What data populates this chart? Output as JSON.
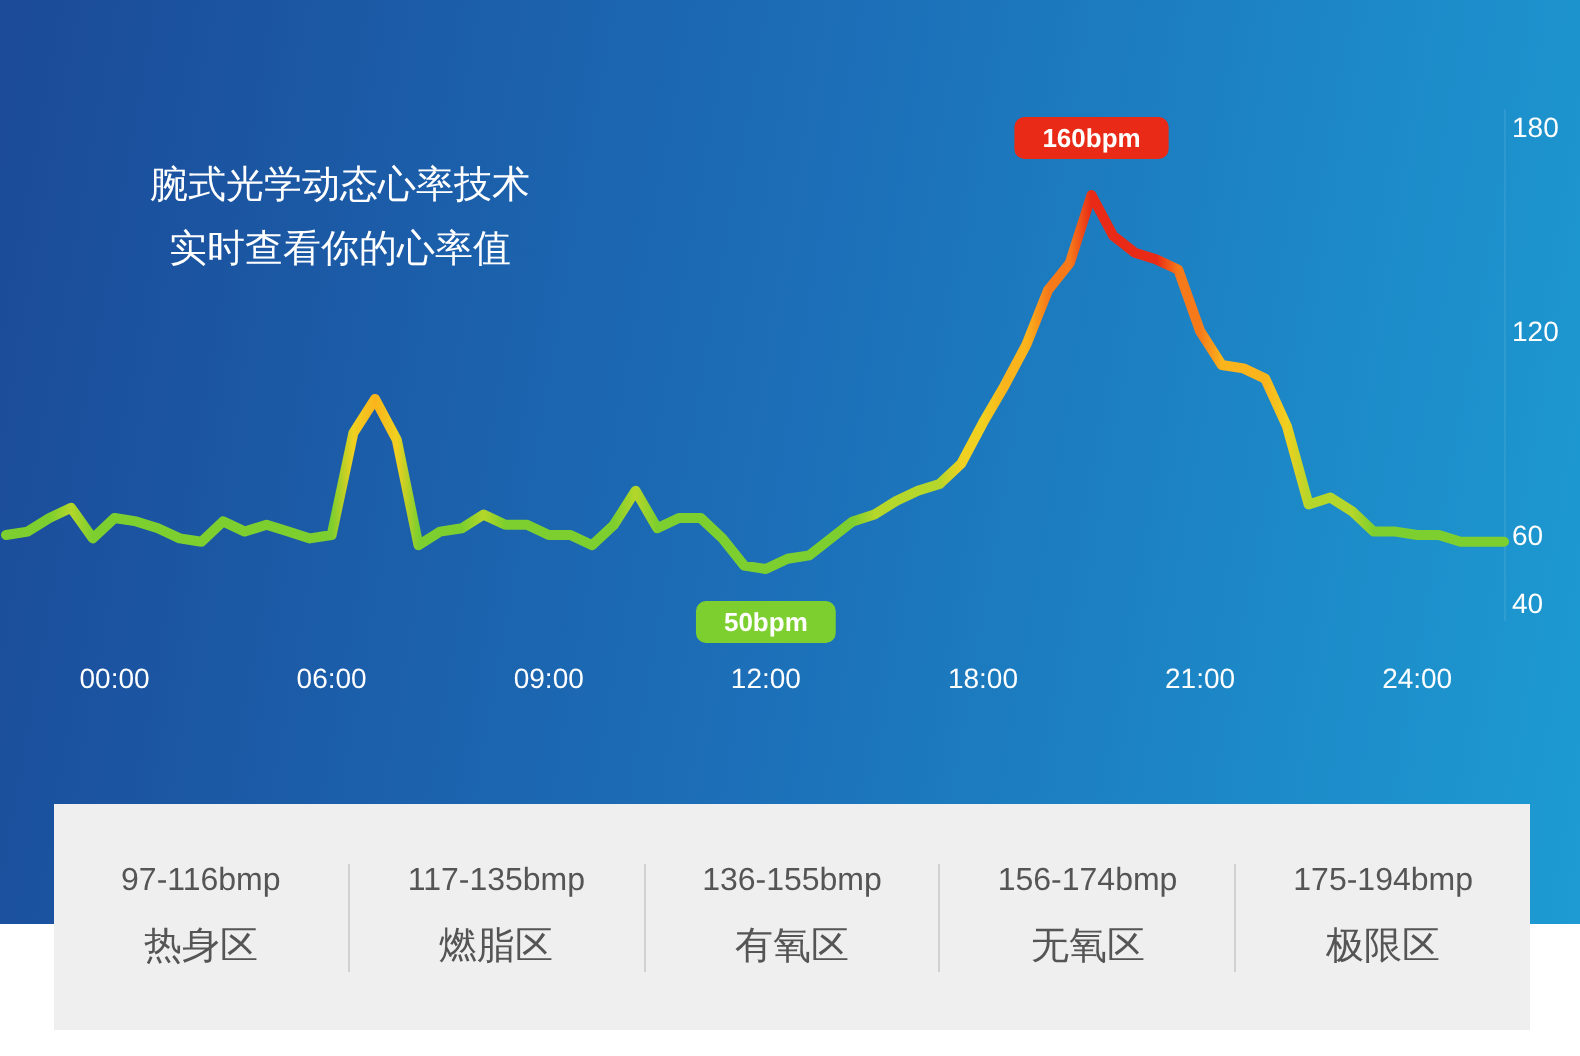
{
  "chart_data": [
    {
      "type": "line",
      "title": "腕式光学动态心率技术",
      "subtitle": "实时查看你的心率值",
      "categories": [
        null,
        null,
        null,
        null,
        null,
        "00:00",
        null,
        null,
        null,
        null,
        null,
        null,
        null,
        null,
        null,
        "06:00",
        null,
        null,
        null,
        null,
        null,
        null,
        null,
        null,
        null,
        "09:00",
        null,
        null,
        null,
        null,
        null,
        null,
        null,
        null,
        null,
        "12:00",
        null,
        null,
        null,
        null,
        null,
        null,
        null,
        null,
        null,
        "18:00",
        null,
        null,
        null,
        null,
        null,
        null,
        null,
        null,
        null,
        "21:00",
        null,
        null,
        null,
        null,
        null,
        null,
        null,
        null,
        null,
        "24:00",
        null,
        null,
        null,
        null
      ],
      "series": [
        {
          "values": [
            60,
            61,
            65,
            68,
            59,
            65,
            64,
            62,
            59,
            58,
            64,
            61,
            63,
            61,
            59,
            60,
            90,
            100,
            88,
            57,
            61,
            62,
            66,
            63,
            63,
            60,
            60,
            57,
            63,
            73,
            62,
            65,
            65,
            59,
            51,
            50,
            53,
            54,
            59,
            64,
            66,
            70,
            73,
            75,
            81,
            93,
            104,
            116,
            132,
            140,
            160,
            148,
            143,
            141,
            138,
            120,
            110,
            109,
            106,
            92,
            69,
            71,
            67,
            61,
            61,
            60,
            60,
            58,
            58,
            58
          ],
          "colors": [
            "#7ccf2e",
            "#7ccf2e",
            "#7ccf2e",
            "#b5d62a",
            "#7ccf2e",
            "#7ccf2e",
            "#7ccf2e",
            "#7ccf2e",
            "#7ccf2e",
            "#7ccf2e",
            "#7ccf2e",
            "#7ccf2e",
            "#7ccf2e",
            "#7ccf2e",
            "#7ccf2e",
            "#7ccf2e",
            "#f0d020",
            "#fbb41c",
            "#f0d020",
            "#7ccf2e",
            "#7ccf2e",
            "#7ccf2e",
            "#b5d62a",
            "#7ccf2e",
            "#7ccf2e",
            "#7ccf2e",
            "#7ccf2e",
            "#7ccf2e",
            "#7ccf2e",
            "#b5d62a",
            "#7ccf2e",
            "#7ccf2e",
            "#7ccf2e",
            "#7ccf2e",
            "#7ccf2e",
            "#7ccf2e",
            "#7ccf2e",
            "#7ccf2e",
            "#7ccf2e",
            "#7ccf2e",
            "#b5d62a",
            "#b5d62a",
            "#b5d62a",
            "#b5d62a",
            "#f0d020",
            "#f0d020",
            "#fbb41c",
            "#fbb41c",
            "#f77a1a",
            "#f77a1a",
            "#e82a16",
            "#e82a16",
            "#e82a16",
            "#e82a16",
            "#f77a1a",
            "#f77a1a",
            "#fbb41c",
            "#fbb41c",
            "#fbb41c",
            "#f0d020",
            "#b5d62a",
            "#b5d62a",
            "#b5d62a",
            "#7ccf2e",
            "#7ccf2e",
            "#7ccf2e",
            "#7ccf2e",
            "#7ccf2e",
            "#7ccf2e",
            "#7ccf2e"
          ],
          "value_labels": [
            null,
            null,
            null,
            null,
            null,
            null,
            null,
            null,
            null,
            null,
            null,
            null,
            null,
            null,
            null,
            null,
            null,
            null,
            null,
            null,
            null,
            null,
            null,
            null,
            null,
            null,
            null,
            null,
            null,
            null,
            null,
            null,
            null,
            null,
            null,
            "50bpm",
            null,
            null,
            null,
            null,
            null,
            null,
            null,
            null,
            null,
            null,
            null,
            null,
            null,
            null,
            "160bpm",
            null,
            null,
            null,
            null,
            null,
            null,
            null,
            null,
            null,
            null,
            null,
            null,
            null,
            null,
            null,
            null,
            null,
            null,
            null
          ]
        }
      ],
      "ylim": [
        35,
        185
      ],
      "yticks": [
        40,
        60,
        120,
        180
      ]
    },
    {
      "type": "other",
      "annotations": [
        "97-116bmp",
        "热身区",
        "117-135bmp",
        "燃脂区",
        "136-155bmp",
        "有氧区",
        "156-174bmp",
        "无氧区",
        "175-194bmp",
        "极限区"
      ]
    }
  ]
}
